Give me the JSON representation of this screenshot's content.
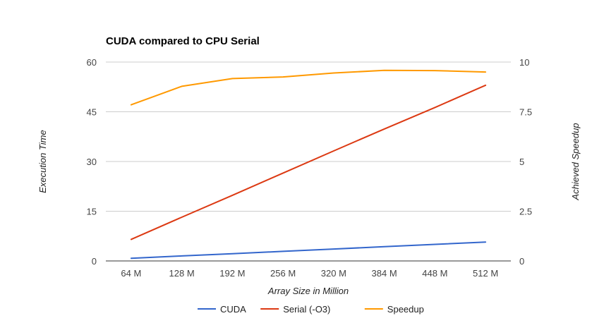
{
  "chart_data": {
    "type": "line",
    "title": "CUDA compared to CPU Serial",
    "xlabel": "Array Size in Million",
    "ylabel": "Execution Time",
    "y2label": "Achieved Speedup",
    "categories": [
      "64 M",
      "128 M",
      "192 M",
      "256 M",
      "320 M",
      "384 M",
      "448 M",
      "512 M"
    ],
    "ylim": [
      0,
      60
    ],
    "y2lim": [
      0,
      10
    ],
    "yticks": [
      "0",
      "15",
      "30",
      "45",
      "60"
    ],
    "y2ticks": [
      "0",
      "2.5",
      "5",
      "7.5",
      "10"
    ],
    "grid": true,
    "legend_position": "bottom",
    "series": [
      {
        "name": "CUDA",
        "axis": "left",
        "color": "#3366cc",
        "values": [
          0.8,
          1.5,
          2.2,
          2.9,
          3.6,
          4.3,
          5.0,
          5.7
        ]
      },
      {
        "name": "Serial (-O3)",
        "axis": "left",
        "color": "#dc3912",
        "values": [
          6.5,
          13.2,
          19.8,
          26.5,
          33.2,
          39.8,
          46.3,
          53.0
        ]
      },
      {
        "name": "Speedup",
        "axis": "right",
        "color": "#ff9900",
        "values": [
          7.85,
          8.78,
          9.17,
          9.25,
          9.45,
          9.58,
          9.57,
          9.5
        ]
      }
    ]
  }
}
